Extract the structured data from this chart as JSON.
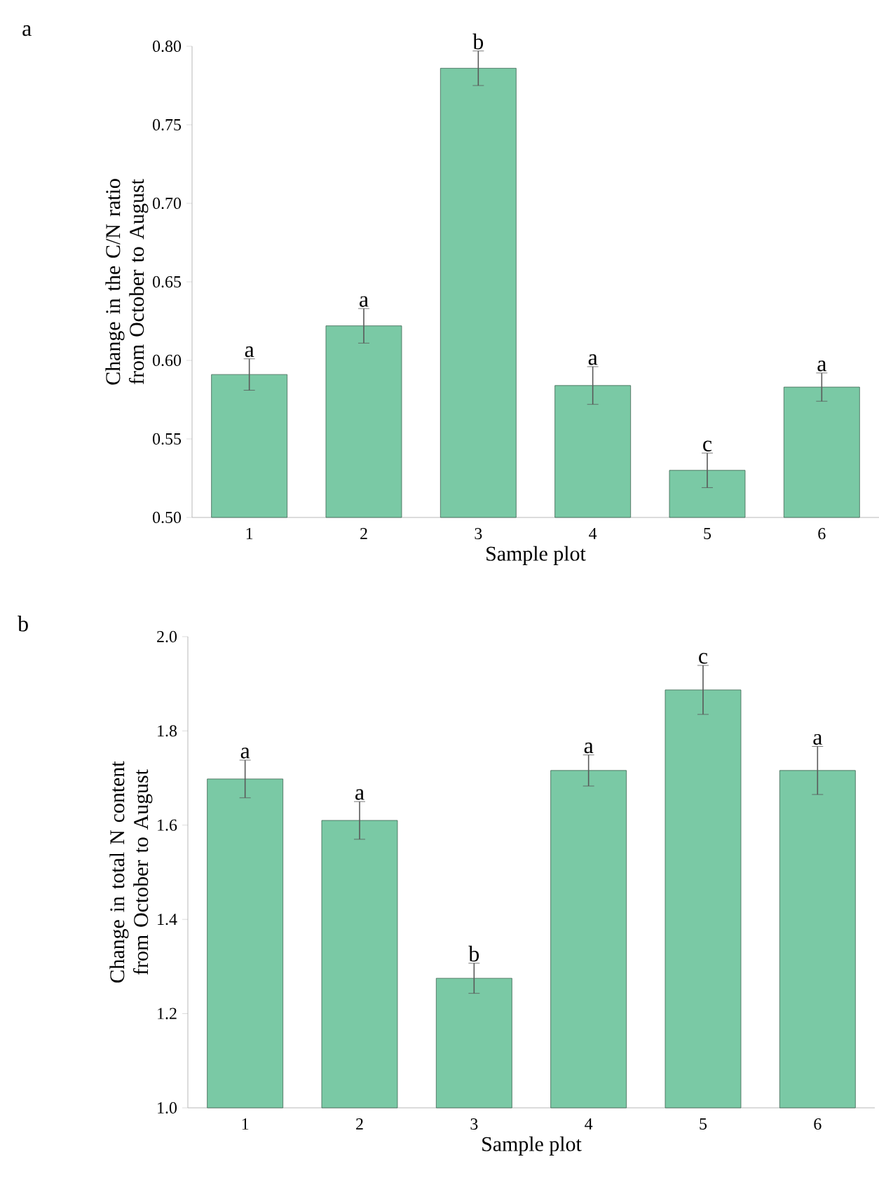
{
  "chart_data": [
    {
      "type": "bar",
      "xlabel": "Sample plot",
      "ylabel": "Change in the C/N ratio from October to August",
      "categories": [
        "1",
        "2",
        "3",
        "4",
        "5",
        "6"
      ],
      "values": [
        0.591,
        0.622,
        0.786,
        0.584,
        0.53,
        0.583
      ],
      "errors": [
        0.01,
        0.011,
        0.011,
        0.012,
        0.011,
        0.009
      ],
      "color": "#7ac9a5",
      "ylim": [
        0.5,
        0.8
      ],
      "yticks": [
        {
          "value": 0.5,
          "label": "0.50"
        },
        {
          "value": 0.55,
          "label": "0.55"
        },
        {
          "value": 0.6,
          "label": "0.60"
        },
        {
          "value": 0.65,
          "label": "0.65"
        },
        {
          "value": 0.7,
          "label": "0.70"
        },
        {
          "value": 0.75,
          "label": "0.75"
        },
        {
          "value": 0.8,
          "label": "0.80"
        }
      ],
      "grid": false,
      "annotations": [
        "a",
        {
          "text": "a",
          "x": "1",
          "y": 0.601
        },
        {
          "text": "a",
          "x": "2",
          "y": 0.633
        },
        {
          "text": "b",
          "x": "3",
          "y": 0.797
        },
        {
          "text": "a",
          "x": "4",
          "y": 0.596
        },
        {
          "text": "c",
          "x": "5",
          "y": 0.541
        },
        {
          "text": "a",
          "x": "6",
          "y": 0.592
        }
      ]
    },
    {
      "type": "bar",
      "xlabel": "Sample plot",
      "ylabel": "Change in total N content from October to August",
      "categories": [
        "1",
        "2",
        "3",
        "4",
        "5",
        "6"
      ],
      "values": [
        1.698,
        1.61,
        1.275,
        1.716,
        1.887,
        1.716
      ],
      "errors": [
        0.04,
        0.04,
        0.032,
        0.033,
        0.052,
        0.051
      ],
      "color": "#7ac9a5",
      "ylim": [
        1.0,
        2.0
      ],
      "yticks": [
        {
          "value": 1.0,
          "label": "1.0"
        },
        {
          "value": 1.2,
          "label": "1.2"
        },
        {
          "value": 1.4,
          "label": "1.4"
        },
        {
          "value": 1.6,
          "label": "1.6"
        },
        {
          "value": 1.8,
          "label": "1.8"
        },
        {
          "value": 2.0,
          "label": "2.0"
        }
      ],
      "grid": false,
      "annotations": [
        "b",
        {
          "text": "a",
          "x": "1",
          "y": 1.738
        },
        {
          "text": "a",
          "x": "2",
          "y": 1.65
        },
        {
          "text": "b",
          "x": "3",
          "y": 1.307
        },
        {
          "text": "a",
          "x": "4",
          "y": 1.749
        },
        {
          "text": "c",
          "x": "5",
          "y": 1.939
        },
        {
          "text": "a",
          "x": "6",
          "y": 1.767
        }
      ]
    }
  ]
}
